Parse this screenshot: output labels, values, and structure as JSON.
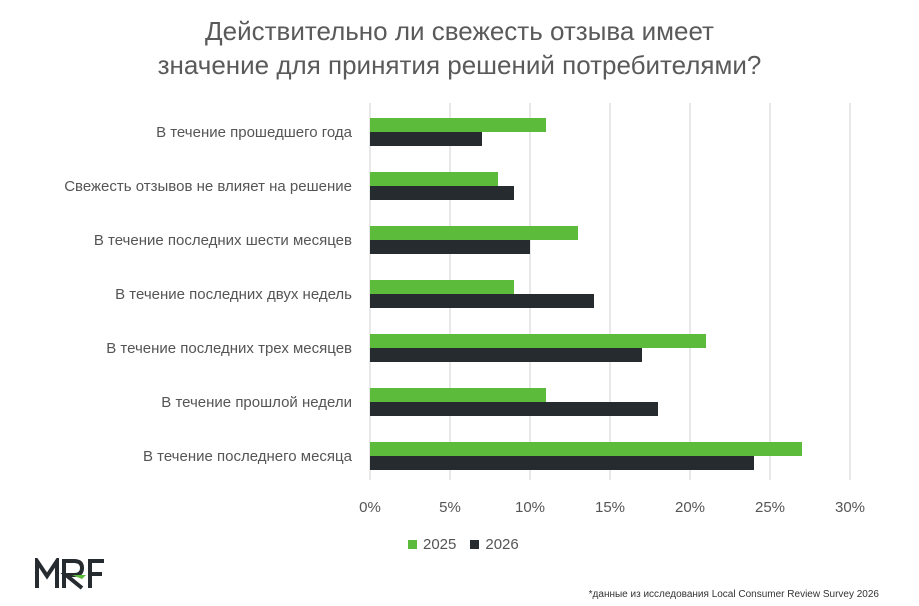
{
  "logo_text": "MRF",
  "footnote": "*данные из исследования Local Consumer Review Survey 2026",
  "colors": {
    "series_2025": "#5dbb3b",
    "series_2026": "#262b30",
    "grid": "#d0d0d0"
  },
  "chart_data": {
    "type": "bar",
    "orientation": "horizontal",
    "title_lines": [
      "Действительно ли свежесть отзыва имеет",
      "значение для принятия решений потребителями?"
    ],
    "categories": [
      "В течение прошедшего года",
      "Свежесть отзывов не влияет на решение",
      "В течение последних шести месяцев",
      "В течение последних двух недель",
      "В течение последних трех месяцев",
      "В течение прошлой недели",
      "В течение последнего месяца"
    ],
    "series": [
      {
        "name": "2025",
        "values": [
          11,
          8,
          13,
          9,
          21,
          11,
          27
        ]
      },
      {
        "name": "2026",
        "values": [
          7,
          9,
          10,
          14,
          17,
          18,
          24
        ]
      }
    ],
    "xlim": [
      0,
      30
    ],
    "xticks": [
      0,
      5,
      10,
      15,
      20,
      25,
      30
    ],
    "tick_labels": [
      "0%",
      "5%",
      "10%",
      "15%",
      "20%",
      "25%",
      "30%"
    ],
    "grid": true,
    "legend_position": "bottom"
  }
}
